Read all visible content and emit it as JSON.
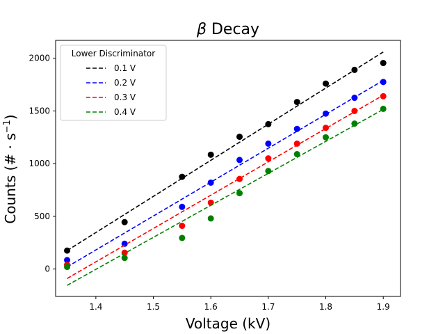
{
  "chart_data": {
    "type": "scatter",
    "title_symbol": "β",
    "title_text": " Decay",
    "xlabel": "Voltage (kV)",
    "ylabel_main": "Counts (# · s",
    "ylabel_sup": "−1",
    "ylabel_close": ")",
    "xlim": [
      1.33,
      1.93
    ],
    "ylim": [
      -260,
      2170
    ],
    "xticks": [
      1.4,
      1.5,
      1.6,
      1.7,
      1.8,
      1.9
    ],
    "yticks": [
      0,
      500,
      1000,
      1500,
      2000
    ],
    "legend": {
      "title": "Lower Discriminator",
      "position": "top-left"
    },
    "x": [
      1.35,
      1.45,
      1.55,
      1.6,
      1.65,
      1.7,
      1.75,
      1.8,
      1.85,
      1.9
    ],
    "series": [
      {
        "name": "0.1 V",
        "color": "#000000",
        "values": [
          175,
          445,
          875,
          1085,
          1255,
          1375,
          1585,
          1760,
          1890,
          1955
        ],
        "fit": {
          "x": [
            1.35,
            1.9
          ],
          "y": [
            175,
            2060
          ]
        }
      },
      {
        "name": "0.2 V",
        "color": "#0000ff",
        "values": [
          85,
          240,
          590,
          820,
          1035,
          1190,
          1330,
          1475,
          1625,
          1775
        ],
        "fit": {
          "x": [
            1.35,
            1.9
          ],
          "y": [
            20,
            1790
          ]
        }
      },
      {
        "name": "0.3 V",
        "color": "#ff0000",
        "values": [
          40,
          155,
          410,
          630,
          855,
          1050,
          1190,
          1340,
          1500,
          1640
        ],
        "fit": {
          "x": [
            1.35,
            1.9
          ],
          "y": [
            -90,
            1650
          ]
        }
      },
      {
        "name": "0.4 V",
        "color": "#008000",
        "values": [
          20,
          105,
          295,
          480,
          720,
          930,
          1090,
          1250,
          1380,
          1520
        ],
        "fit": {
          "x": [
            1.35,
            1.9
          ],
          "y": [
            -155,
            1515
          ]
        }
      }
    ]
  }
}
